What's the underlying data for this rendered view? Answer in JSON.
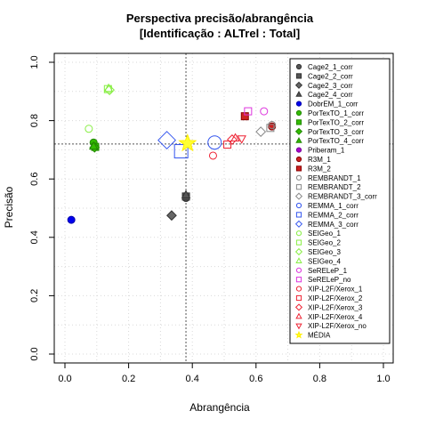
{
  "chart_data": {
    "type": "scatter",
    "title_line1": "Perspectiva precisão/abrangência",
    "title_line2": "[Identificação : ALTrel : Total]",
    "xlabel": "Abrangência",
    "ylabel": "Precisão",
    "xlim": [
      0,
      1
    ],
    "ylim": [
      0,
      1
    ],
    "x_ticks": [
      "0.0",
      "0.2",
      "0.4",
      "0.6",
      "0.8",
      "1.0"
    ],
    "y_ticks": [
      "0.0",
      "0.2",
      "0.4",
      "0.6",
      "0.8",
      "1.0"
    ],
    "grid": true,
    "reference_lines": {
      "x": 0.38,
      "y": 0.72
    },
    "legend_position": "right",
    "series": [
      {
        "name": "Cage2_1_corr",
        "shape": "circle",
        "fill": "#555555",
        "stroke": "#333333",
        "points": [
          [
            0.38,
            0.535
          ]
        ]
      },
      {
        "name": "Cage2_2_corr",
        "shape": "square",
        "fill": "#555555",
        "stroke": "#333333",
        "points": [
          [
            0.38,
            0.54
          ]
        ]
      },
      {
        "name": "Cage2_3_corr",
        "shape": "diamond",
        "fill": "#666666",
        "stroke": "#333333",
        "points": [
          [
            0.335,
            0.475
          ]
        ]
      },
      {
        "name": "Cage2_4_corr",
        "shape": "triangle",
        "fill": "#555555",
        "stroke": "#333333",
        "points": [
          [
            0.38,
            0.545
          ]
        ]
      },
      {
        "name": "DobrEM_1_corr",
        "shape": "circle",
        "fill": "#0000ee",
        "stroke": "#0000aa",
        "points": [
          [
            0.02,
            0.46
          ]
        ]
      },
      {
        "name": "PorTexTO_1_corr",
        "shape": "circle",
        "fill": "#33bb00",
        "stroke": "#228800",
        "points": [
          [
            0.09,
            0.725
          ]
        ]
      },
      {
        "name": "PorTexTO_2_corr",
        "shape": "square",
        "fill": "#33bb00",
        "stroke": "#228800",
        "points": [
          [
            0.095,
            0.71
          ]
        ]
      },
      {
        "name": "PorTexTO_3_corr",
        "shape": "diamond",
        "fill": "#33bb00",
        "stroke": "#228800",
        "points": [
          [
            0.093,
            0.708
          ]
        ]
      },
      {
        "name": "PorTexTO_4_corr",
        "shape": "triangle",
        "fill": "#33bb00",
        "stroke": "#228800",
        "points": [
          [
            0.09,
            0.712
          ]
        ]
      },
      {
        "name": "Priberam_1",
        "shape": "circle",
        "fill": "#aa00cc",
        "stroke": "#770099",
        "points": []
      },
      {
        "name": "R3M_1",
        "shape": "circle",
        "fill": "#cc2222",
        "stroke": "#880000",
        "points": [
          [
            0.65,
            0.78
          ]
        ]
      },
      {
        "name": "R3M_2",
        "shape": "square",
        "fill": "#cc2222",
        "stroke": "#880000",
        "points": [
          [
            0.565,
            0.815
          ]
        ]
      },
      {
        "name": "REMBRANDT_1",
        "shape": "circle",
        "fill": "none",
        "stroke": "#888888",
        "points": [
          [
            0.65,
            0.785
          ]
        ]
      },
      {
        "name": "REMBRANDT_2",
        "shape": "square",
        "fill": "none",
        "stroke": "#888888",
        "points": [
          [
            0.645,
            0.775
          ]
        ]
      },
      {
        "name": "REMBRANDT_3_corr",
        "shape": "diamond",
        "fill": "none",
        "stroke": "#888888",
        "points": [
          [
            0.615,
            0.762
          ]
        ]
      },
      {
        "name": "REMMA_1_corr",
        "shape": "circle",
        "fill": "none",
        "stroke": "#3355ee",
        "points": [
          [
            0.47,
            0.725
          ]
        ]
      },
      {
        "name": "REMMA_2_corr",
        "shape": "square",
        "fill": "none",
        "stroke": "#3355ee",
        "points": [
          [
            0.365,
            0.695
          ]
        ]
      },
      {
        "name": "REMMA_3_corr",
        "shape": "diamond",
        "fill": "none",
        "stroke": "#3355ee",
        "points": [
          [
            0.32,
            0.733
          ]
        ]
      },
      {
        "name": "SEIGeo_1",
        "shape": "circle",
        "fill": "none",
        "stroke": "#88ee44",
        "points": [
          [
            0.075,
            0.772
          ]
        ]
      },
      {
        "name": "SEIGeo_2",
        "shape": "square",
        "fill": "none",
        "stroke": "#88ee44",
        "points": [
          [
            0.135,
            0.908
          ]
        ]
      },
      {
        "name": "SEIGeo_3",
        "shape": "diamond",
        "fill": "none",
        "stroke": "#88ee44",
        "points": [
          [
            0.14,
            0.905
          ]
        ]
      },
      {
        "name": "SEIGeo_4",
        "shape": "triangle",
        "fill": "none",
        "stroke": "#88ee44",
        "points": [
          [
            0.137,
            0.91
          ]
        ]
      },
      {
        "name": "SeRELeP_1",
        "shape": "circle",
        "fill": "none",
        "stroke": "#dd33dd",
        "points": [
          [
            0.625,
            0.832
          ]
        ]
      },
      {
        "name": "SeRELeP_no",
        "shape": "square",
        "fill": "none",
        "stroke": "#dd33dd",
        "points": [
          [
            0.575,
            0.832
          ]
        ]
      },
      {
        "name": "XIP-L2F/Xerox_1",
        "shape": "circle",
        "fill": "none",
        "stroke": "#ee2233",
        "points": [
          [
            0.465,
            0.68
          ]
        ]
      },
      {
        "name": "XIP-L2F/Xerox_2",
        "shape": "square",
        "fill": "none",
        "stroke": "#ee2233",
        "points": [
          [
            0.51,
            0.718
          ]
        ]
      },
      {
        "name": "XIP-L2F/Xerox_3",
        "shape": "diamond",
        "fill": "none",
        "stroke": "#ee2233",
        "points": [
          [
            0.525,
            0.735
          ]
        ]
      },
      {
        "name": "XIP-L2F/Xerox_4",
        "shape": "triangle",
        "fill": "none",
        "stroke": "#ee2233",
        "points": [
          [
            0.535,
            0.74
          ]
        ]
      },
      {
        "name": "XIP-L2F/Xerox_no",
        "shape": "invtriangle",
        "fill": "none",
        "stroke": "#ee2233",
        "points": [
          [
            0.555,
            0.738
          ]
        ]
      },
      {
        "name": "MÉDIA",
        "shape": "star",
        "fill": "#ffff33",
        "stroke": "#ffee00",
        "points": [
          [
            0.385,
            0.722
          ]
        ]
      }
    ]
  }
}
